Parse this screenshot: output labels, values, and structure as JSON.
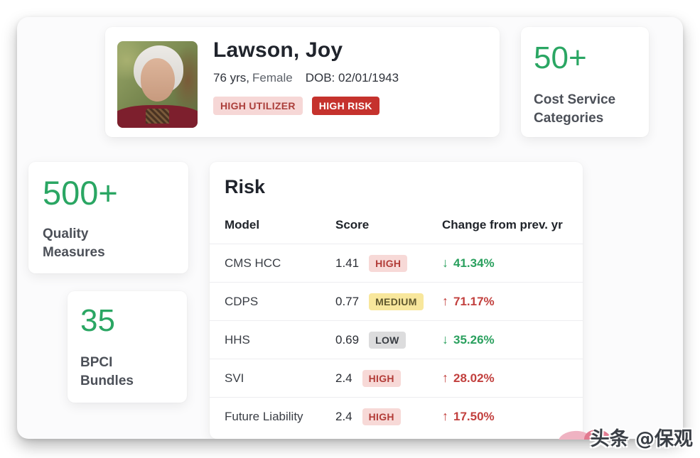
{
  "colors": {
    "accent_green": "#2aa663",
    "risk_red": "#c2403e",
    "badge_solid_red": "#c5322d",
    "badge_soft_red_bg": "#f6d7d6",
    "badge_yellow_bg": "#f8e79c",
    "badge_gray_bg": "#dcdcdd"
  },
  "patient_card": {
    "photo": "elderly-woman-portrait",
    "name": "Lawson, Joy",
    "age": "76 yrs,",
    "gender": "Female",
    "dob": "DOB: 02/01/1943",
    "badges": [
      {
        "label": "HIGH UTILIZER"
      },
      {
        "label": "HIGH RISK"
      }
    ]
  },
  "stat_cards": [
    {
      "value": "50+",
      "label": "Cost Service Categories"
    },
    {
      "value": "500+",
      "label": "Quality Measures"
    },
    {
      "value": "35",
      "label": "BPCI Bundles"
    }
  ],
  "risk": {
    "title": "Risk",
    "columns": [
      "Model",
      "Score",
      "Change from prev. yr"
    ],
    "rows": [
      {
        "model": "CMS HCC",
        "score": "1.41",
        "level": "HIGH",
        "arrow": "↓",
        "change": "41.34%",
        "trend": "down"
      },
      {
        "model": "CDPS",
        "score": "0.77",
        "level": "MEDIUM",
        "arrow": "↑",
        "change": "71.17%",
        "trend": "up"
      },
      {
        "model": "HHS",
        "score": "0.69",
        "level": "LOW",
        "arrow": "↓",
        "change": "35.26%",
        "trend": "down"
      },
      {
        "model": "SVI",
        "score": "2.4",
        "level": "HIGH",
        "arrow": "↑",
        "change": "28.02%",
        "trend": "up"
      },
      {
        "model": "Future Liability",
        "score": "2.4",
        "level": "HIGH",
        "arrow": "↑",
        "change": "17.50%",
        "trend": "up"
      }
    ]
  },
  "page": {
    "watermark": "头条 @保观"
  }
}
